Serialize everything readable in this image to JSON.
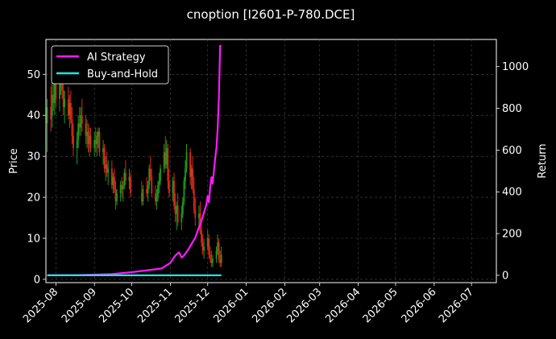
{
  "chart_data": {
    "type": "candlestick+line",
    "title": "cnoption [I2601-P-780.DCE]",
    "ylabel_left": "Price",
    "ylabel_right": "Return",
    "x_ticks": [
      "2025-08",
      "2025-09",
      "2025-10",
      "2025-11",
      "2025-12",
      "2026-01",
      "2026-02",
      "2026-03",
      "2026-04",
      "2026-05",
      "2026-06",
      "2026-07"
    ],
    "xlim": [
      "2025-07-24",
      "2026-07-21"
    ],
    "ylim_left": [
      -0.8,
      58.5
    ],
    "yticks_left": [
      0,
      10,
      20,
      30,
      40,
      50
    ],
    "ylim_right": [
      -35,
      1130
    ],
    "yticks_right": [
      0,
      200,
      400,
      600,
      800,
      1000
    ],
    "grid": true,
    "legend_position": "top-left",
    "colors": {
      "background": "#000000",
      "up": "#1a9c1a",
      "down": "#e0261a",
      "ai_strategy": "#ff19ff",
      "buy_and_hold": "#19e6e6",
      "grid": "#4a4a4a"
    },
    "candles": [
      [
        "2025-07-25",
        38,
        44,
        31,
        42
      ],
      [
        "2025-07-28",
        42,
        47,
        36,
        39
      ],
      [
        "2025-07-29",
        40,
        48,
        37,
        45
      ],
      [
        "2025-07-30",
        45,
        50,
        41,
        43
      ],
      [
        "2025-07-31",
        43,
        52,
        40,
        49
      ],
      [
        "2025-08-01",
        49,
        51,
        42,
        44
      ],
      [
        "2025-08-04",
        44,
        50,
        41,
        48
      ],
      [
        "2025-08-05",
        48,
        55,
        45,
        50
      ],
      [
        "2025-08-06",
        50,
        53,
        44,
        46
      ],
      [
        "2025-08-07",
        46,
        49,
        40,
        42
      ],
      [
        "2025-08-08",
        42,
        46,
        38,
        44
      ],
      [
        "2025-08-11",
        44,
        47,
        39,
        40
      ],
      [
        "2025-08-12",
        40,
        45,
        37,
        43
      ],
      [
        "2025-08-13",
        43,
        46,
        38,
        39
      ],
      [
        "2025-08-14",
        39,
        42,
        33,
        35
      ],
      [
        "2025-08-15",
        35,
        38,
        30,
        32
      ],
      [
        "2025-08-18",
        32,
        36,
        28,
        34
      ],
      [
        "2025-08-19",
        34,
        40,
        32,
        38
      ],
      [
        "2025-08-20",
        38,
        42,
        35,
        37
      ],
      [
        "2025-08-21",
        37,
        42,
        35,
        40
      ],
      [
        "2025-08-22",
        40,
        44,
        36,
        38
      ],
      [
        "2025-08-25",
        38,
        40,
        33,
        35
      ],
      [
        "2025-08-26",
        35,
        39,
        32,
        36
      ],
      [
        "2025-08-27",
        36,
        38,
        31,
        33
      ],
      [
        "2025-08-28",
        33,
        37,
        30,
        35
      ],
      [
        "2025-08-29",
        35,
        37,
        31,
        32
      ],
      [
        "2025-09-01",
        32,
        36,
        30,
        34
      ],
      [
        "2025-09-02",
        34,
        37,
        31,
        33
      ],
      [
        "2025-09-03",
        33,
        36,
        30,
        35
      ],
      [
        "2025-09-04",
        35,
        37,
        32,
        36
      ],
      [
        "2025-09-05",
        36,
        37,
        30,
        31
      ],
      [
        "2025-09-08",
        31,
        34,
        28,
        32
      ],
      [
        "2025-09-09",
        32,
        33,
        26,
        27
      ],
      [
        "2025-09-10",
        27,
        30,
        24,
        28
      ],
      [
        "2025-09-11",
        28,
        31,
        25,
        26
      ],
      [
        "2025-09-12",
        26,
        29,
        23,
        27
      ],
      [
        "2025-09-15",
        27,
        29,
        22,
        23
      ],
      [
        "2025-09-16",
        23,
        26,
        21,
        25
      ],
      [
        "2025-09-17",
        25,
        27,
        21,
        22
      ],
      [
        "2025-09-18",
        22,
        24,
        17,
        19
      ],
      [
        "2025-09-19",
        19,
        22,
        18,
        21
      ],
      [
        "2025-09-22",
        21,
        24,
        19,
        23
      ],
      [
        "2025-09-23",
        23,
        25,
        20,
        22
      ],
      [
        "2025-09-24",
        22,
        24,
        19,
        23
      ],
      [
        "2025-09-25",
        23,
        27,
        22,
        26
      ],
      [
        "2025-09-26",
        26,
        29,
        23,
        24
      ],
      [
        "2025-09-29",
        24,
        27,
        22,
        25
      ],
      [
        "2025-09-30",
        25,
        26,
        20,
        21
      ],
      [
        "2025-10-09",
        21,
        24,
        18,
        19
      ],
      [
        "2025-10-10",
        19,
        23,
        18,
        22
      ],
      [
        "2025-10-13",
        22,
        25,
        20,
        21
      ],
      [
        "2025-10-14",
        21,
        24,
        19,
        23
      ],
      [
        "2025-10-15",
        23,
        28,
        22,
        27
      ],
      [
        "2025-10-16",
        27,
        30,
        24,
        25
      ],
      [
        "2025-10-17",
        25,
        27,
        20,
        21
      ],
      [
        "2025-10-20",
        21,
        23,
        18,
        19
      ],
      [
        "2025-10-21",
        19,
        22,
        17,
        20
      ],
      [
        "2025-10-22",
        20,
        24,
        19,
        23
      ],
      [
        "2025-10-23",
        23,
        26,
        21,
        24
      ],
      [
        "2025-10-24",
        24,
        28,
        23,
        27
      ],
      [
        "2025-10-27",
        27,
        33,
        26,
        31
      ],
      [
        "2025-10-28",
        31,
        35,
        27,
        28
      ],
      [
        "2025-10-29",
        28,
        34,
        27,
        32
      ],
      [
        "2025-10-30",
        32,
        33,
        22,
        24
      ],
      [
        "2025-10-31",
        24,
        27,
        20,
        21
      ],
      [
        "2025-11-03",
        21,
        25,
        19,
        24
      ],
      [
        "2025-11-04",
        24,
        26,
        17,
        18
      ],
      [
        "2025-11-05",
        18,
        21,
        14,
        16
      ],
      [
        "2025-11-06",
        16,
        19,
        12,
        18
      ],
      [
        "2025-11-07",
        18,
        21,
        13,
        14
      ],
      [
        "2025-11-10",
        14,
        18,
        12,
        16
      ],
      [
        "2025-11-11",
        16,
        20,
        15,
        19
      ],
      [
        "2025-11-12",
        19,
        25,
        18,
        24
      ],
      [
        "2025-11-13",
        24,
        29,
        22,
        27
      ],
      [
        "2025-11-14",
        27,
        33,
        26,
        31
      ],
      [
        "2025-11-17",
        31,
        32,
        23,
        25
      ],
      [
        "2025-11-18",
        25,
        28,
        22,
        27
      ],
      [
        "2025-11-19",
        27,
        30,
        21,
        22
      ],
      [
        "2025-11-20",
        22,
        25,
        16,
        17
      ],
      [
        "2025-11-21",
        17,
        20,
        13,
        15
      ],
      [
        "2025-11-24",
        15,
        18,
        12,
        16
      ],
      [
        "2025-11-25",
        16,
        19,
        11,
        12
      ],
      [
        "2025-11-26",
        12,
        14,
        8,
        9
      ],
      [
        "2025-11-27",
        9,
        11,
        6,
        7
      ],
      [
        "2025-11-28",
        7,
        10,
        5,
        8
      ],
      [
        "2025-12-01",
        8,
        12,
        7,
        10
      ],
      [
        "2025-12-02",
        10,
        11,
        5,
        6
      ],
      [
        "2025-12-03",
        6,
        8,
        4,
        5
      ],
      [
        "2025-12-04",
        5,
        7,
        3,
        4
      ],
      [
        "2025-12-05",
        4,
        6,
        3,
        5
      ],
      [
        "2025-12-08",
        5,
        8,
        4,
        7
      ],
      [
        "2025-12-09",
        7,
        11,
        6,
        9
      ],
      [
        "2025-12-10",
        9,
        10,
        4,
        5
      ],
      [
        "2025-12-11",
        5,
        7,
        3,
        4
      ],
      [
        "2025-12-12",
        4,
        8,
        3,
        6
      ]
    ],
    "series": [
      {
        "name": "AI Strategy",
        "x": [
          "2025-07-25",
          "2025-08-15",
          "2025-09-01",
          "2025-09-15",
          "2025-10-01",
          "2025-10-15",
          "2025-10-25",
          "2025-11-01",
          "2025-11-05",
          "2025-11-08",
          "2025-11-10",
          "2025-11-12",
          "2025-11-15",
          "2025-11-18",
          "2025-11-21",
          "2025-11-24",
          "2025-11-26",
          "2025-11-28",
          "2025-11-30",
          "2025-12-01",
          "2025-12-02",
          "2025-12-03",
          "2025-12-04",
          "2025-12-05",
          "2025-12-06",
          "2025-12-07",
          "2025-12-08",
          "2025-12-09",
          "2025-12-10",
          "2025-12-11",
          "2025-12-12"
        ],
        "values": [
          0,
          1,
          3,
          6,
          15,
          25,
          33,
          60,
          95,
          110,
          85,
          95,
          120,
          150,
          180,
          230,
          260,
          300,
          340,
          380,
          350,
          420,
          470,
          440,
          500,
          560,
          610,
          700,
          850,
          1100,
          1100
        ]
      },
      {
        "name": "Buy-and-Hold",
        "x": [
          "2025-07-25",
          "2025-12-12"
        ],
        "values": [
          0,
          0
        ]
      }
    ]
  }
}
